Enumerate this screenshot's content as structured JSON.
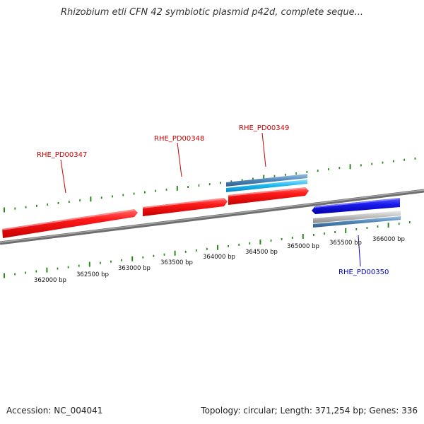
{
  "title": "Rhizobium etli CFN 42 symbiotic plasmid p42d, complete seque...",
  "footer": {
    "accession": "Accession: NC_004041",
    "summary": "Topology: circular; Length: 371,254 bp; Genes: 336"
  },
  "colors": {
    "forward_gene": "#ff1010",
    "reverse_gene": "#1a1aee",
    "forward_label": "#cc0000",
    "reverse_label": "#0000cc",
    "tick": "#2a8a1a",
    "backbone": "#7a7a7a",
    "track_steel_blue": "#4f86b8",
    "track_light_blue": "#19b6ee",
    "track_gray": "#b8b8b8"
  },
  "scale_labels": [
    "362000 bp",
    "362500 bp",
    "363000 bp",
    "363500 bp",
    "364000 bp",
    "364500 bp",
    "365000 bp",
    "365500 bp",
    "366000 bp"
  ],
  "genes": [
    {
      "name": "RHE_PD00347",
      "strand": "forward",
      "icon": "right-arrow"
    },
    {
      "name": "RHE_PD00348",
      "strand": "forward",
      "icon": "right-arrow"
    },
    {
      "name": "RHE_PD00349",
      "strand": "forward",
      "icon": "right-arrow"
    },
    {
      "name": "RHE_PD00350",
      "strand": "reverse",
      "icon": "left-arrow"
    }
  ]
}
